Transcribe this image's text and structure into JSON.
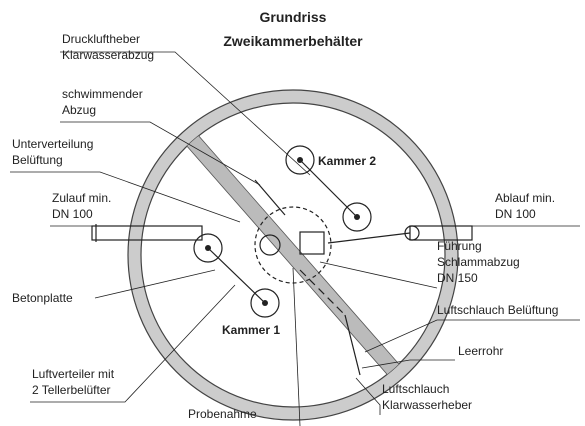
{
  "title": [
    "Grundriss",
    "Zweikammerbehälter"
  ],
  "labels": [
    {
      "lines": [
        "Druckluftheber",
        "Klarwasserabzug"
      ]
    },
    {
      "lines": [
        "schwimmender",
        "Abzug"
      ]
    },
    {
      "lines": [
        "Unterverteilung",
        "Belüftung"
      ]
    },
    {
      "lines": [
        "Zulauf min.",
        "DN 100"
      ]
    },
    {
      "lines": [
        "Betonplatte"
      ]
    },
    {
      "lines": [
        "Luftverteiler mit",
        "2 Tellerbelüfter"
      ]
    },
    {
      "lines": [
        "Probenahme"
      ]
    },
    {
      "lines": [
        "Ablauf min.",
        "DN 100"
      ]
    },
    {
      "lines": [
        "Führung",
        "Schlammabzug",
        "DN 150"
      ]
    },
    {
      "lines": [
        "Luftschlauch Belüftung"
      ]
    },
    {
      "lines": [
        "Leerrohr"
      ]
    },
    {
      "lines": [
        "Luftschlauch",
        "Klarwasserheber"
      ]
    }
  ],
  "chambers": [
    "Kammer 1",
    "Kammer 2"
  ]
}
